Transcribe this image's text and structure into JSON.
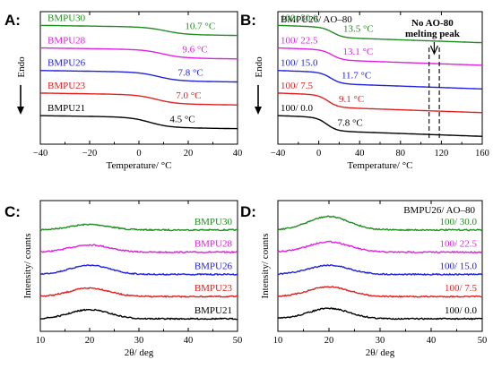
{
  "chart_data": [
    {
      "panel": "A:",
      "type": "line",
      "xlabel": "Temperature/ °C",
      "ylabel": "Endo",
      "xlim": [
        -40,
        40
      ],
      "xticks": [
        -40,
        -20,
        0,
        20,
        40
      ],
      "series": [
        {
          "name": "BMPU30",
          "color": "#228b22",
          "tg_label": "10.7 °C",
          "tg": 10.7,
          "offset": 4,
          "step": 0.32
        },
        {
          "name": "BMPU28",
          "color": "#e020e0",
          "tg_label": "9.6 °C",
          "tg": 9.6,
          "offset": 3,
          "step": 0.36
        },
        {
          "name": "BMPU26",
          "color": "#2020e0",
          "tg_label": "7.8 °C",
          "tg": 7.8,
          "offset": 2,
          "step": 0.38
        },
        {
          "name": "BMPU23",
          "color": "#e02020",
          "tg_label": "7.0 °C",
          "tg": 7.0,
          "offset": 1,
          "step": 0.4
        },
        {
          "name": "BMPU21",
          "color": "#000000",
          "tg_label": "4.5 °C",
          "tg": 4.5,
          "offset": 0,
          "step": 0.45
        }
      ]
    },
    {
      "panel": "B:",
      "type": "line",
      "title": "BMPU26/ AO–80",
      "xlabel": "Temperature/ °C",
      "ylabel": "Endo",
      "xlim": [
        -40,
        160
      ],
      "xticks": [
        -40,
        0,
        40,
        80,
        120,
        160
      ],
      "annotation": [
        "No AO-80",
        "melting peak"
      ],
      "dashed_lines_x": [
        108,
        118
      ],
      "series": [
        {
          "name": "100/ 30.0",
          "color": "#228b22",
          "tg_label": "13.5 °C",
          "tg": 13.5,
          "offset": 4,
          "step": 0.45
        },
        {
          "name": "100/ 22.5",
          "color": "#e020e0",
          "tg_label": "13.1 °C",
          "tg": 13.1,
          "offset": 3,
          "step": 0.45
        },
        {
          "name": "100/ 15.0",
          "color": "#2020e0",
          "tg_label": "11.7 °C",
          "tg": 11.7,
          "offset": 2,
          "step": 0.5
        },
        {
          "name": "100/ 7.5",
          "color": "#e02020",
          "tg_label": "9.1 °C",
          "tg": 9.1,
          "offset": 1,
          "step": 0.55
        },
        {
          "name": "100/ 0.0",
          "color": "#000000",
          "tg_label": "7.8 °C",
          "tg": 7.8,
          "offset": 0,
          "step": 0.6
        }
      ]
    },
    {
      "panel": "C:",
      "type": "line",
      "xlabel": "2θ/ deg",
      "ylabel": "Intensity/ counts",
      "xlim": [
        10,
        50
      ],
      "xticks": [
        10,
        20,
        30,
        40,
        50
      ],
      "series": [
        {
          "name": "BMPU30",
          "color": "#228b22",
          "peak": 20,
          "height": 0.45,
          "offset": 4
        },
        {
          "name": "BMPU28",
          "color": "#e020e0",
          "peak": 20,
          "height": 0.6,
          "offset": 3
        },
        {
          "name": "BMPU26",
          "color": "#2020e0",
          "peak": 20,
          "height": 0.75,
          "offset": 2
        },
        {
          "name": "BMPU23",
          "color": "#e02020",
          "peak": 20,
          "height": 0.7,
          "offset": 1
        },
        {
          "name": "BMPU21",
          "color": "#000000",
          "peak": 20,
          "height": 0.75,
          "offset": 0
        }
      ]
    },
    {
      "panel": "D:",
      "type": "line",
      "title": "BMPU26/ AO–80",
      "xlabel": "2θ/ deg",
      "ylabel": "Intensity/ counts",
      "xlim": [
        10,
        50
      ],
      "xticks": [
        10,
        20,
        30,
        40,
        50
      ],
      "series": [
        {
          "name": "100/ 30.0",
          "color": "#228b22",
          "peak": 20,
          "height": 1.1,
          "offset": 4
        },
        {
          "name": "100/ 22.5",
          "color": "#e020e0",
          "peak": 20,
          "height": 0.85,
          "offset": 3
        },
        {
          "name": "100/ 15.0",
          "color": "#2020e0",
          "peak": 20,
          "height": 0.75,
          "offset": 2
        },
        {
          "name": "100/ 7.5",
          "color": "#e02020",
          "peak": 20,
          "height": 0.8,
          "offset": 1
        },
        {
          "name": "100/ 0.0",
          "color": "#000000",
          "peak": 20,
          "height": 0.85,
          "offset": 0
        }
      ]
    }
  ]
}
